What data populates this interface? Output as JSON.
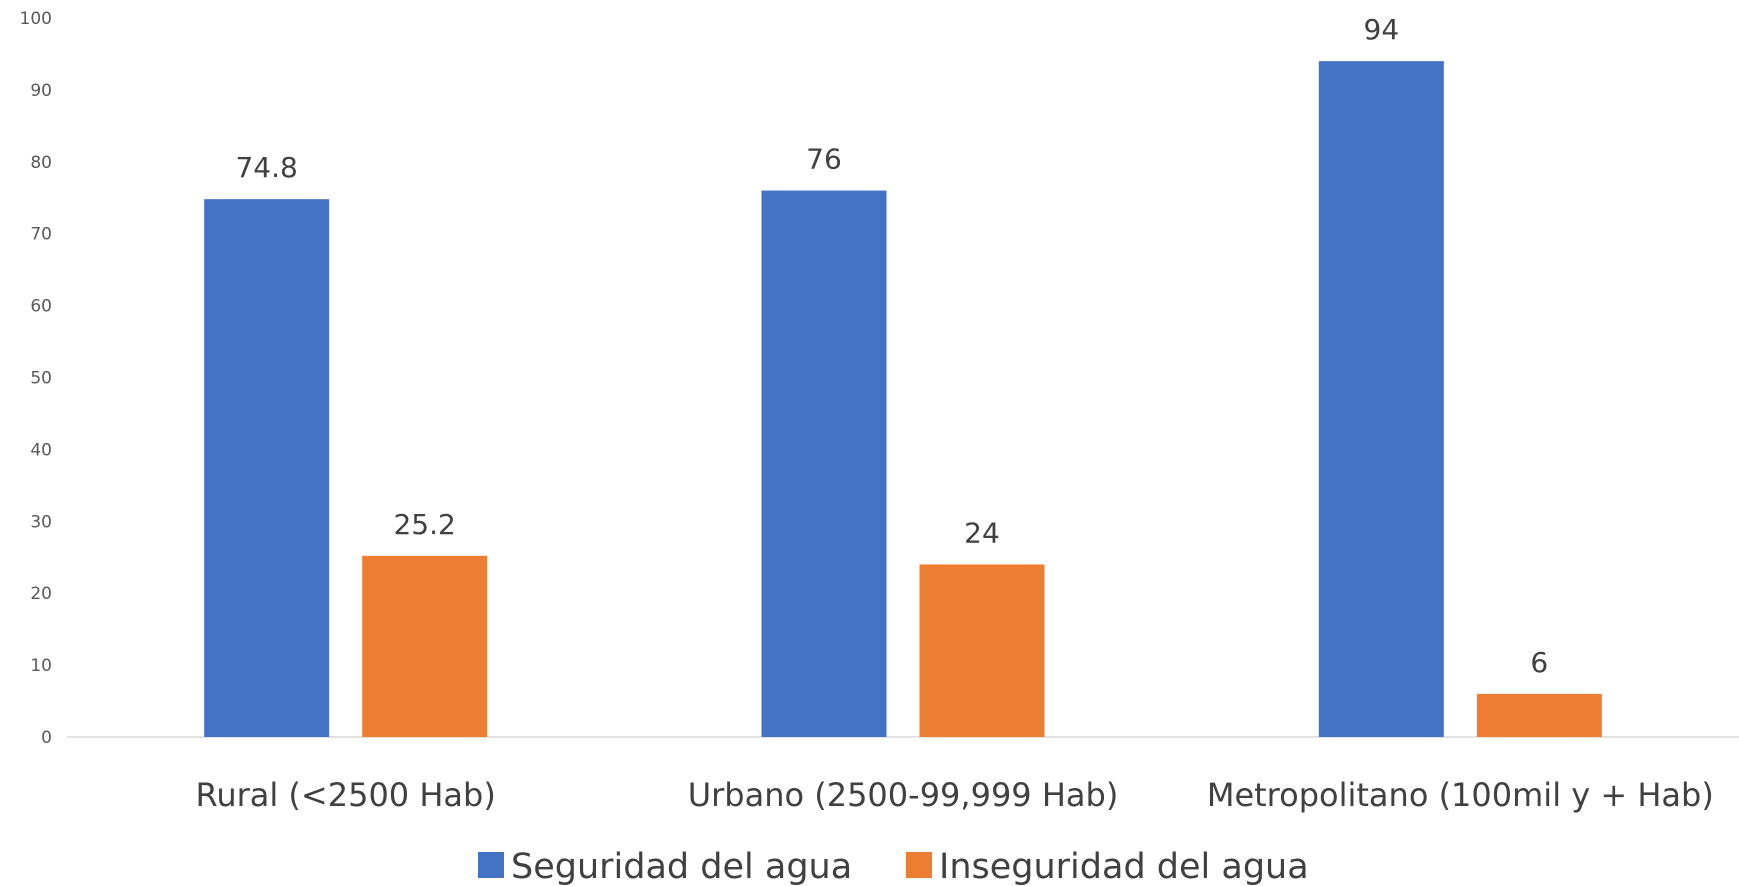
{
  "chart_data": {
    "type": "bar",
    "title": "",
    "xlabel": "",
    "ylabel": "",
    "ylim": [
      0,
      100
    ],
    "yticks": [
      0,
      10,
      20,
      30,
      40,
      50,
      60,
      70,
      80,
      90,
      100
    ],
    "grid": false,
    "legend_position": "bottom",
    "categories": [
      "Rural (<2500 Hab)",
      "Urbano (2500-99,999 Hab)",
      "Metropolitano (100mil y + Hab)"
    ],
    "series": [
      {
        "name": "Seguridad del agua",
        "color": "#4472c4",
        "values": [
          74.8,
          76,
          94
        ],
        "labels": [
          "74.8",
          "76",
          "94"
        ]
      },
      {
        "name": "Inseguridad del agua",
        "color": "#ed7d31",
        "values": [
          25.2,
          24,
          6
        ],
        "labels": [
          "25.2",
          "24",
          "6"
        ]
      }
    ]
  }
}
